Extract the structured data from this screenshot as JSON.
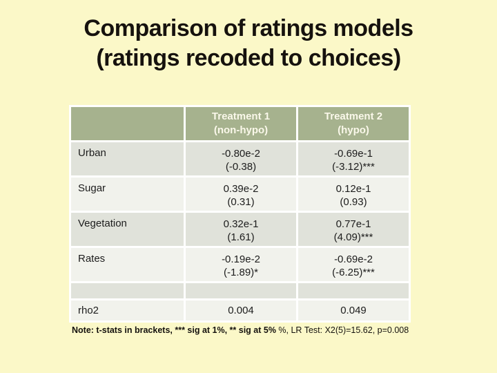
{
  "slide": {
    "title_line1": "Comparison of ratings models",
    "title_line2": "(ratings recoded to choices)"
  },
  "colors": {
    "slide_background": "#FBF8C8",
    "title_text": "#16120E",
    "table_header_bg": "#A6B28E",
    "table_header_text": "#FAF8EA",
    "row_dark_bg": "#E0E2DA",
    "row_light_bg": "#F1F2EC",
    "cell_border": "#FFFFFF",
    "body_text": "#1C1C1C"
  },
  "table": {
    "header": [
      {
        "line1": "",
        "line2": ""
      },
      {
        "line1": "Treatment 1",
        "line2": "(non-hypo)"
      },
      {
        "line1": "Treatment 2",
        "line2": "(hypo)"
      }
    ],
    "rows": [
      {
        "label": "Urban",
        "t1_value": "-0.80e-2",
        "t1_stat": "(-0.38)",
        "t2_value": "-0.69e-1",
        "t2_stat": "(-3.12)***"
      },
      {
        "label": "Sugar",
        "t1_value": "0.39e-2",
        "t1_stat": "(0.31)",
        "t2_value": "0.12e-1",
        "t2_stat": "(0.93)"
      },
      {
        "label": "Vegetation",
        "t1_value": "0.32e-1",
        "t1_stat": "(1.61)",
        "t2_value": "0.77e-1",
        "t2_stat": "(4.09)***"
      },
      {
        "label": "Rates",
        "t1_value": "-0.19e-2",
        "t1_stat": "(-1.89)*",
        "t2_value": "-0.69e-2",
        "t2_stat": "(-6.25)***"
      }
    ],
    "footer_row": {
      "label": "rho2",
      "t1": "0.004",
      "t2": "0.049"
    }
  },
  "note": {
    "bold_part": "Note: t-stats in brackets, *** sig at 1%, ** sig at 5%",
    "regular_part": " %, LR Test: X2(5)=15.62, p=0.008"
  }
}
